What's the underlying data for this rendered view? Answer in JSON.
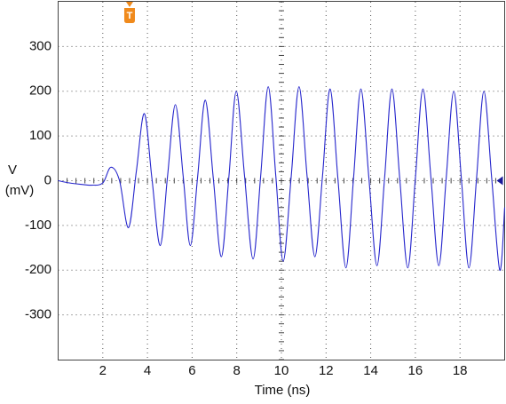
{
  "chart_data": {
    "type": "line",
    "x_label": "Time (ns)",
    "y_label_lines": [
      "V",
      "(mV)"
    ],
    "trigger": {
      "label": "T",
      "x": 3.2
    },
    "reference_level": 0,
    "xlim": [
      0,
      20
    ],
    "ylim": [
      -400,
      400
    ],
    "xticks": [
      2,
      4,
      6,
      8,
      10,
      12,
      14,
      16,
      18
    ],
    "yticks": [
      300,
      200,
      100,
      0,
      -100,
      -200,
      -300
    ],
    "grid": true,
    "x": [
      0,
      0.5,
      1,
      1.5,
      2,
      2.36,
      2.75,
      3.15,
      3.5,
      3.86,
      4.2,
      4.57,
      4.9,
      5.25,
      5.6,
      5.92,
      6.25,
      6.59,
      6.95,
      7.31,
      7.65,
      7.98,
      8.35,
      8.73,
      9.07,
      9.41,
      9.75,
      10.08,
      10.44,
      10.79,
      11.15,
      11.5,
      11.84,
      12.18,
      12.53,
      12.89,
      13.23,
      13.56,
      13.92,
      14.28,
      14.62,
      14.95,
      15.3,
      15.66,
      16,
      16.34,
      16.7,
      17.05,
      17.38,
      17.72,
      18.06,
      18.4,
      18.74,
      19.07,
      19.42,
      19.78,
      20
    ],
    "series": [
      {
        "name": "Trace",
        "color": "#2626cc",
        "values": [
          0,
          -5,
          -8,
          -10,
          -5,
          30,
          0,
          -105,
          20,
          150,
          5,
          -145,
          10,
          170,
          10,
          -145,
          10,
          180,
          5,
          -170,
          10,
          200,
          10,
          -175,
          10,
          210,
          10,
          -180,
          10,
          210,
          10,
          -170,
          10,
          205,
          5,
          -195,
          5,
          205,
          5,
          -190,
          5,
          205,
          5,
          -195,
          5,
          205,
          5,
          -190,
          5,
          200,
          5,
          -195,
          5,
          200,
          5,
          -200,
          -60
        ]
      }
    ]
  }
}
